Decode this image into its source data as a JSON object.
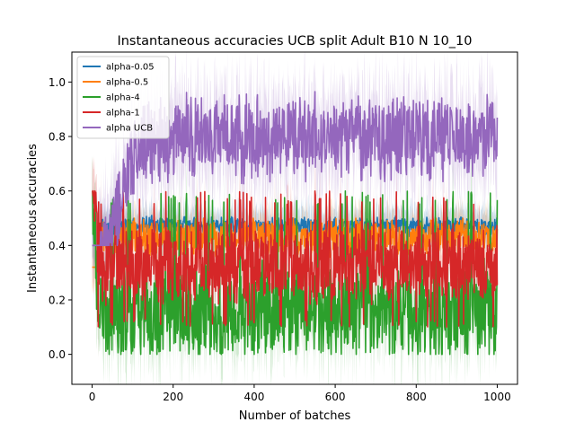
{
  "chart_data": {
    "type": "line",
    "title": "Instantaneous accuracies UCB split Adult B10 N 10_10",
    "xlabel": "Number of batches",
    "ylabel": "Instantaneous accuracies",
    "xlim": [
      -50,
      1050
    ],
    "ylim": [
      -0.11,
      1.11
    ],
    "xticks": [
      0,
      200,
      400,
      600,
      800,
      1000
    ],
    "xtick_labels": [
      "0",
      "200",
      "400",
      "600",
      "800",
      "1000"
    ],
    "yticks": [
      0.0,
      0.2,
      0.4,
      0.6,
      0.8,
      1.0
    ],
    "ytick_labels": [
      "0.0",
      "0.2",
      "0.4",
      "0.6",
      "0.8",
      "1.0"
    ],
    "grid": false,
    "legend_position": "top-left",
    "x_range": [
      0,
      1000
    ],
    "series": [
      {
        "name": "alpha-0.05",
        "color": "#1f77b4",
        "mean": 0.47,
        "spread": 0.02,
        "band": 0.07,
        "start": 0.2,
        "rise_end": 25,
        "min": 0.4,
        "max": 0.51,
        "spike": 0.0
      },
      {
        "name": "alpha-0.5",
        "color": "#ff7f0e",
        "mean": 0.43,
        "spread": 0.04,
        "band": 0.08,
        "start": 0.2,
        "rise_end": 25,
        "min": 0.32,
        "max": 0.5,
        "spike": 0.0
      },
      {
        "name": "alpha-4",
        "color": "#2ca02c",
        "mean": 0.16,
        "spread": 0.1,
        "band": 0.12,
        "start": 0.63,
        "rise_end": 15,
        "min": 0.0,
        "max": 0.6,
        "spike": 0.05
      },
      {
        "name": "alpha-1",
        "color": "#d62728",
        "mean": 0.33,
        "spread": 0.08,
        "band": 0.1,
        "start": 0.7,
        "rise_end": 15,
        "min": 0.1,
        "max": 0.6,
        "spike": 0.04
      },
      {
        "name": "alpha UCB",
        "color": "#9467bd",
        "mean": 0.8,
        "spread": 0.09,
        "band": 0.16,
        "start": 0.22,
        "rise_end": 120,
        "min": 0.4,
        "max": 1.0,
        "spike": 0.0
      }
    ]
  }
}
